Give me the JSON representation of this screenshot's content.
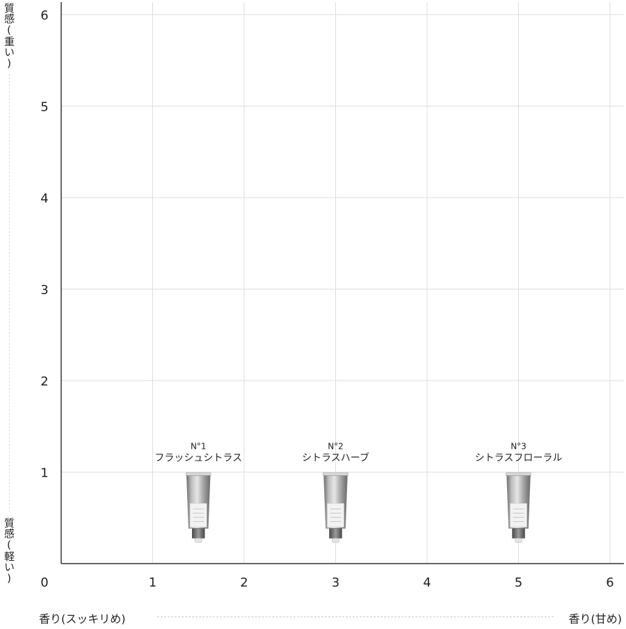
{
  "chart_data": {
    "type": "scatter",
    "xlim": [
      0,
      6
    ],
    "ylim": [
      0,
      6
    ],
    "x_ticks": [
      "0",
      "1",
      "2",
      "3",
      "4",
      "5",
      "6"
    ],
    "y_ticks": [
      "1",
      "2",
      "3",
      "4",
      "5",
      "6"
    ],
    "grid": true,
    "xlabel_left": "香り(スッキリめ)",
    "xlabel_right": "香り(甘め)",
    "ylabel_top": "質感(重い)",
    "ylabel_bottom": "質感(軽い)",
    "points": [
      {
        "code": "N°1",
        "name": "フラッシュシトラス",
        "x": 1.5,
        "y": 0.5
      },
      {
        "code": "N°2",
        "name": "シトラスハーブ",
        "x": 3.0,
        "y": 0.5
      },
      {
        "code": "N°3",
        "name": "シトラスフローラル",
        "x": 5.0,
        "y": 0.5
      }
    ],
    "marker": "tube-icon",
    "colors": {
      "grid": "#dddddd",
      "axis": "#333333",
      "text": "#222222",
      "tube_body": "#a9a9a9",
      "tube_cap": "#6f6f6f"
    }
  }
}
